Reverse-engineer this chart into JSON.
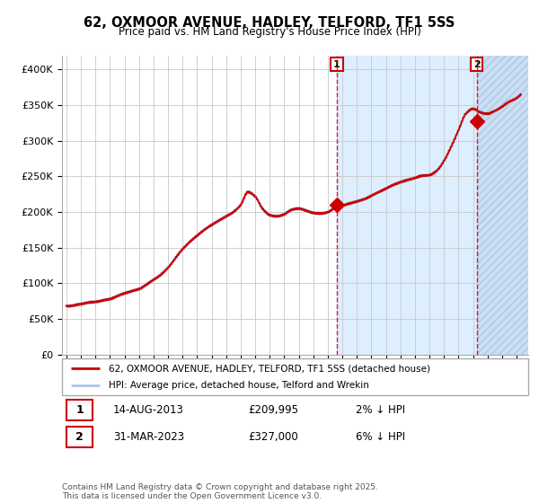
{
  "title": "62, OXMOOR AVENUE, HADLEY, TELFORD, TF1 5SS",
  "subtitle": "Price paid vs. HM Land Registry's House Price Index (HPI)",
  "ylim": [
    0,
    420000
  ],
  "xlim_start": 1994.7,
  "xlim_end": 2026.8,
  "hpi_color": "#aac8e8",
  "price_color": "#cc0000",
  "background_color": "#ffffff",
  "plot_bg_color": "#ffffff",
  "shading_color": "#ddeeff",
  "grid_color": "#c8c8c8",
  "sale1_date": 2013.617,
  "sale1_price": 209995,
  "sale2_date": 2023.247,
  "sale2_price": 327000,
  "legend_line1": "62, OXMOOR AVENUE, HADLEY, TELFORD, TF1 5SS (detached house)",
  "legend_line2": "HPI: Average price, detached house, Telford and Wrekin",
  "annotation1_date": "14-AUG-2013",
  "annotation1_price": "£209,995",
  "annotation1_pct": "2% ↓ HPI",
  "annotation2_date": "31-MAR-2023",
  "annotation2_price": "£327,000",
  "annotation2_pct": "6% ↓ HPI",
  "copyright": "Contains HM Land Registry data © Crown copyright and database right 2025.\nThis data is licensed under the Open Government Licence v3.0.",
  "ytick_labels": [
    "£0",
    "£50K",
    "£100K",
    "£150K",
    "£200K",
    "£250K",
    "£300K",
    "£350K",
    "£400K"
  ],
  "ytick_values": [
    0,
    50000,
    100000,
    150000,
    200000,
    250000,
    300000,
    350000,
    400000
  ],
  "hpi_anchors_t": [
    1995.0,
    1995.5,
    1996.0,
    1996.5,
    1997.0,
    1997.5,
    1998.0,
    1998.5,
    1999.0,
    1999.5,
    2000.0,
    2000.5,
    2001.0,
    2001.5,
    2002.0,
    2002.5,
    2003.0,
    2003.5,
    2004.0,
    2004.5,
    2005.0,
    2005.5,
    2006.0,
    2006.5,
    2007.0,
    2007.5,
    2008.0,
    2008.5,
    2009.0,
    2009.5,
    2010.0,
    2010.5,
    2011.0,
    2011.5,
    2012.0,
    2012.5,
    2013.0,
    2013.5,
    2014.0,
    2014.5,
    2015.0,
    2015.5,
    2016.0,
    2016.5,
    2017.0,
    2017.5,
    2018.0,
    2018.5,
    2019.0,
    2019.5,
    2020.0,
    2020.5,
    2021.0,
    2021.5,
    2022.0,
    2022.5,
    2023.0,
    2023.5,
    2024.0,
    2024.5,
    2025.0,
    2025.5,
    2026.0,
    2026.3
  ],
  "hpi_anchors_v": [
    68000,
    69000,
    71000,
    73000,
    74000,
    76000,
    78000,
    82000,
    86000,
    89000,
    92000,
    98000,
    105000,
    112000,
    122000,
    135000,
    148000,
    158000,
    167000,
    175000,
    182000,
    188000,
    194000,
    200000,
    210000,
    228000,
    222000,
    205000,
    196000,
    194000,
    197000,
    203000,
    205000,
    202000,
    199000,
    198000,
    200000,
    206000,
    209000,
    212000,
    215000,
    218000,
    223000,
    228000,
    233000,
    238000,
    242000,
    245000,
    248000,
    251000,
    252000,
    258000,
    272000,
    292000,
    315000,
    338000,
    345000,
    340000,
    338000,
    342000,
    348000,
    355000,
    360000,
    365000
  ]
}
